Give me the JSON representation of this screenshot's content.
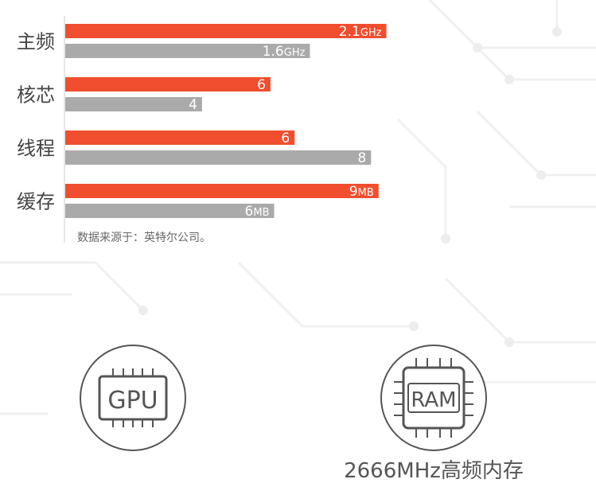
{
  "chart_data": {
    "type": "bar",
    "orientation": "horizontal",
    "categories": [
      "主频",
      "核芯",
      "线程",
      "缓存"
    ],
    "series": [
      {
        "color": "#f04e2e",
        "values": [
          2.1,
          6,
          6,
          9
        ],
        "labels": [
          {
            "num": "2.1",
            "unit": "GHz"
          },
          {
            "num": "6",
            "unit": ""
          },
          {
            "num": "6",
            "unit": ""
          },
          {
            "num": "9",
            "unit": "MB"
          }
        ]
      },
      {
        "color": "#aaaaaa",
        "values": [
          1.6,
          4,
          8,
          6
        ],
        "labels": [
          {
            "num": "1.6",
            "unit": "GHz"
          },
          {
            "num": "4",
            "unit": ""
          },
          {
            "num": "8",
            "unit": ""
          },
          {
            "num": "6",
            "unit": "MB"
          }
        ]
      }
    ],
    "scale_max": [
      2.55,
      11.4,
      10.2,
      11.2
    ],
    "source_note": "数据来源于：英特尔公司。",
    "grid": false,
    "legend": "none"
  },
  "features": [
    {
      "icon": "gpu-chip-icon",
      "icon_text": "GPU",
      "caption": ""
    },
    {
      "icon": "ram-chip-icon",
      "icon_text": "RAM",
      "caption": "2666MHz高频内存"
    }
  ],
  "colors": {
    "accent": "#f04e2e",
    "secondary": "#aaaaaa",
    "icon": "#555555",
    "text": "#444444"
  }
}
